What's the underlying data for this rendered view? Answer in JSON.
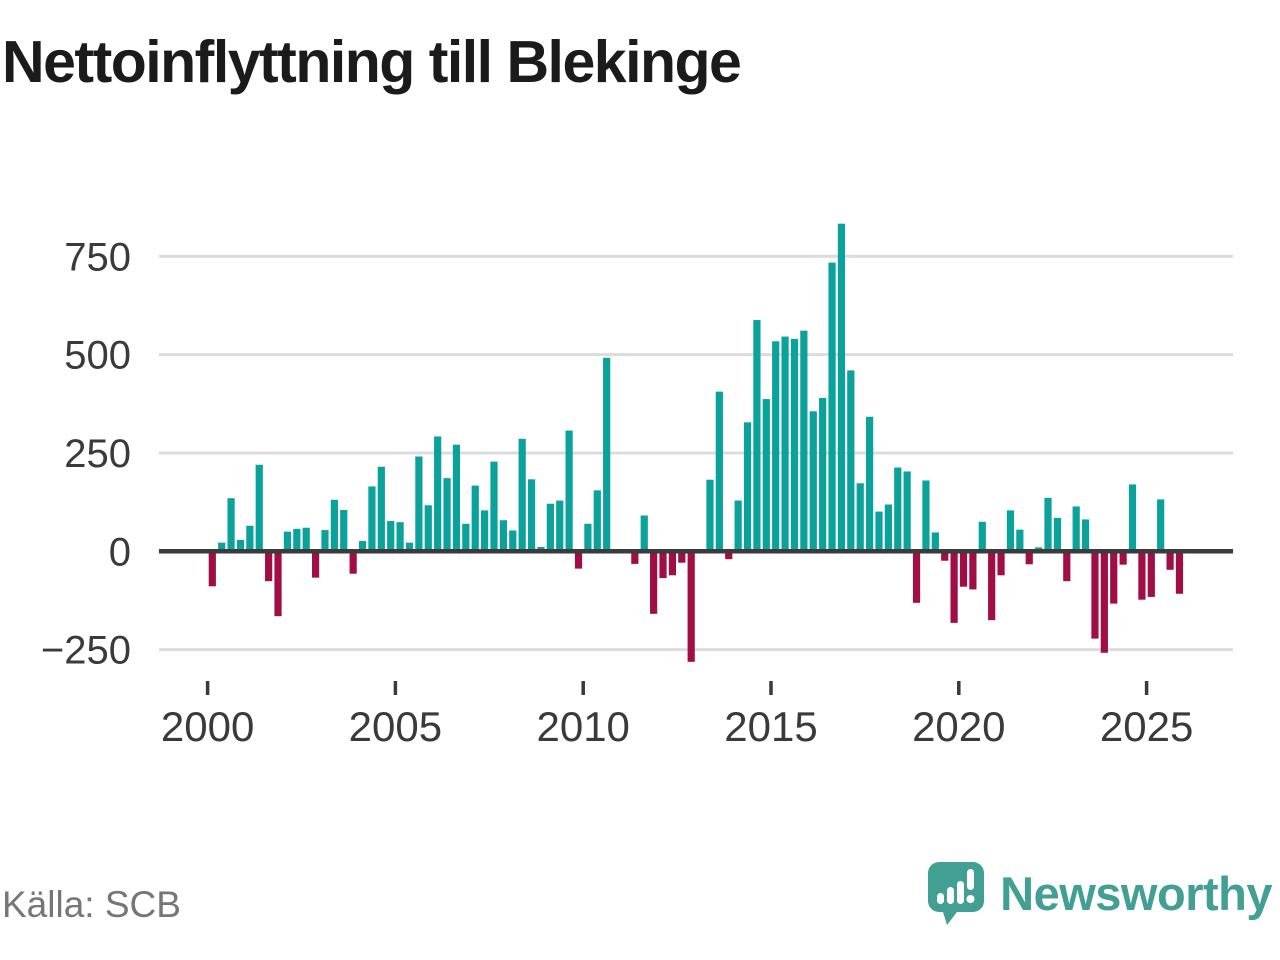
{
  "title": "Nettoinflyttning till Blekinge",
  "source": {
    "label": "Källa: SCB"
  },
  "logo": {
    "text": "Newsworthy",
    "icon": "speech-bubble-bar-chart-icon"
  },
  "colors": {
    "positive": "#0aa29b",
    "negative": "#a00e45",
    "axis": "#3b3b3b",
    "grid": "#dcdcdc",
    "tick_label": "#3a3a3a",
    "title_text": "#1b1b1b",
    "source_text": "#767676",
    "logo": "#41a093"
  },
  "chart_data": {
    "type": "bar",
    "title": "Nettoinflyttning till Blekinge",
    "unit": "net migration per quarter (persons)",
    "frequency": "quarterly",
    "x_start": {
      "year": 2000,
      "quarter": 1
    },
    "x_end": {
      "year": 2025,
      "quarter": 4
    },
    "x_tick_labels": [
      "2000",
      "2005",
      "2010",
      "2015",
      "2020",
      "2025"
    ],
    "y_tick_labels": [
      "750",
      "500",
      "250",
      "0",
      "−250"
    ],
    "y_tick_values": [
      750,
      500,
      250,
      0,
      -250
    ],
    "ylim": [
      -300,
      870
    ],
    "grid": "horizontal",
    "legend": "none",
    "series": [
      {
        "name": "Nettoinflyttning till Blekinge",
        "values": [
          -89,
          22,
          135,
          29,
          65,
          220,
          -76,
          -165,
          50,
          57,
          60,
          -67,
          54,
          131,
          105,
          -57,
          26,
          165,
          215,
          77,
          74,
          22,
          241,
          117,
          292,
          186,
          271,
          70,
          167,
          104,
          228,
          79,
          53,
          286,
          183,
          11,
          121,
          129,
          307,
          -44,
          70,
          155,
          492,
          0,
          0,
          -32,
          91,
          -159,
          -68,
          -61,
          -29,
          -281,
          0,
          182,
          406,
          -20,
          129,
          328,
          588,
          387,
          534,
          546,
          540,
          561,
          356,
          390,
          734,
          833,
          460,
          173,
          342,
          101,
          119,
          213,
          203,
          -131,
          180,
          48,
          -24,
          -182,
          -90,
          -97,
          75,
          -175,
          -61,
          104,
          55,
          -33,
          10,
          136,
          85,
          -76,
          114,
          81,
          -222,
          -258,
          -133,
          -34,
          170,
          -123,
          -116,
          132,
          -47,
          -108
        ]
      }
    ]
  }
}
